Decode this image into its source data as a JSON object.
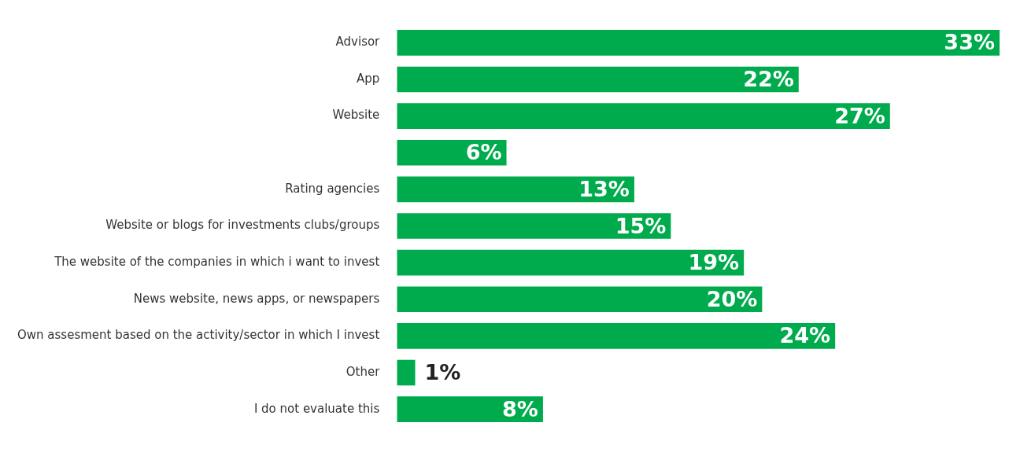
{
  "chart_data": {
    "type": "bar",
    "orientation": "horizontal",
    "categories": [
      "Advisor",
      "App",
      "Website",
      null,
      "Rating agencies",
      "Website or blogs for investments clubs/groups",
      "The website of the companies in which i want to invest",
      "News website, news apps, or newspapers",
      "Own assesment based on the activity/sector in which I invest",
      "Other",
      "I do not evaluate this"
    ],
    "values": [
      33,
      22,
      27,
      6,
      13,
      15,
      19,
      20,
      24,
      1,
      8
    ],
    "value_labels": [
      "33%",
      "22%",
      "27%",
      "6%",
      "13%",
      "15%",
      "19%",
      "20%",
      "24%",
      "1%",
      "8%"
    ],
    "color": "#00ab4e",
    "xlim": [
      0,
      33
    ],
    "tick_labels": "y",
    "legend": false
  }
}
